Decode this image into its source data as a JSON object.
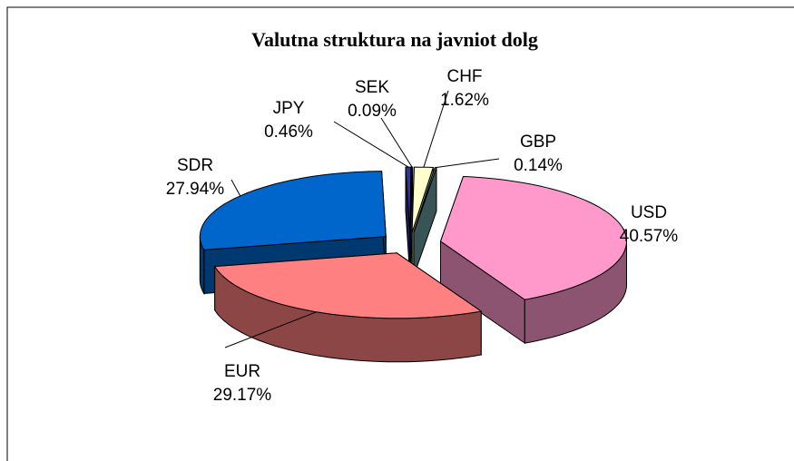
{
  "chart_data": {
    "type": "pie3d",
    "title": "Valutna struktura na javniot dolg",
    "categories": [
      "USD",
      "EUR",
      "SDR",
      "JPY",
      "SEK",
      "CHF",
      "GBP"
    ],
    "values": [
      40.57,
      29.17,
      27.94,
      0.46,
      0.09,
      1.62,
      0.14
    ],
    "value_labels": [
      "40.57%",
      "29.17%",
      "27.94%",
      "0.46%",
      "0.09%",
      "1.62%",
      "0.14%"
    ],
    "colors": [
      "#ff99cc",
      "#ff8080",
      "#0066cc",
      "#333399",
      "#3366ff",
      "#ffffcc",
      "#669999"
    ]
  }
}
